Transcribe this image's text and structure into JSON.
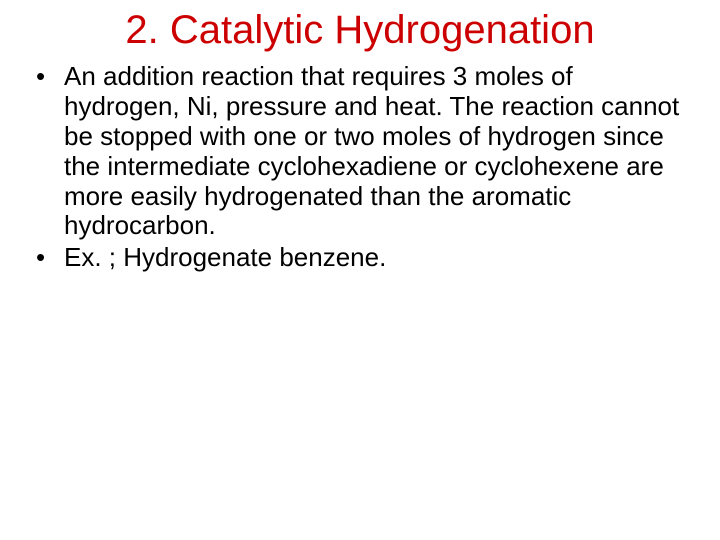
{
  "slide": {
    "title_text": "2. Catalytic Hydrogenation",
    "title_color": "#cc0000",
    "title_fontsize": 40,
    "body_color": "#000000",
    "body_fontsize": 26,
    "background_color": "#ffffff",
    "bullets": [
      "An addition reaction that requires 3 moles of hydrogen, Ni, pressure and heat.  The reaction cannot be stopped with one or two moles of hydrogen since the intermediate cyclohexadiene or cyclohexene are more easily hydrogenated than the aromatic hydrocarbon.",
      "Ex. ; Hydrogenate benzene."
    ]
  }
}
